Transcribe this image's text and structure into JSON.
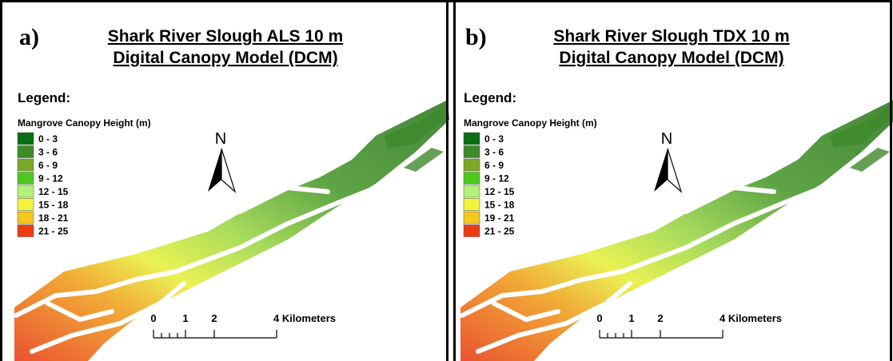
{
  "panels": [
    {
      "label": "a)",
      "title": [
        "Shark River Slough ALS 10 m",
        "Digital Canopy Model (DCM)"
      ],
      "legend_title": "Legend:",
      "legend_subtitle": "Mangrove Canopy Height (m)",
      "legend": [
        {
          "label": "0 - 3",
          "color": "#0a6e14"
        },
        {
          "label": "3 - 6",
          "color": "#3d8a2a"
        },
        {
          "label": "6 - 9",
          "color": "#7aa928"
        },
        {
          "label": "9 - 12",
          "color": "#4ec81e"
        },
        {
          "label": "12 - 15",
          "color": "#b4f07a"
        },
        {
          "label": "15 - 18",
          "color": "#f0f53c"
        },
        {
          "label": "18 - 21",
          "color": "#f5c81e"
        },
        {
          "label": "21 - 25",
          "color": "#eb3c14"
        }
      ],
      "north": "N",
      "scale": [
        "0",
        "1",
        "2",
        "4 Kilometers"
      ]
    },
    {
      "label": "b)",
      "title": [
        "Shark River Slough TDX 10 m",
        "Digital Canopy Model (DCM)"
      ],
      "legend_title": "Legend:",
      "legend_subtitle": "Mangrove Canopy Height (m)",
      "legend": [
        {
          "label": "0 - 3",
          "color": "#0a6e14"
        },
        {
          "label": "3 - 6",
          "color": "#3d8a2a"
        },
        {
          "label": "6 - 9",
          "color": "#7aa928"
        },
        {
          "label": "9 - 12",
          "color": "#4ec81e"
        },
        {
          "label": "12 - 15",
          "color": "#b4f07a"
        },
        {
          "label": "15 - 18",
          "color": "#f0f53c"
        },
        {
          "label": "19 - 21",
          "color": "#f5c81e"
        },
        {
          "label": "21 - 25",
          "color": "#eb3c14"
        }
      ],
      "north": "N",
      "scale": [
        "0",
        "1",
        "2",
        "4 Kilometers"
      ]
    }
  ]
}
